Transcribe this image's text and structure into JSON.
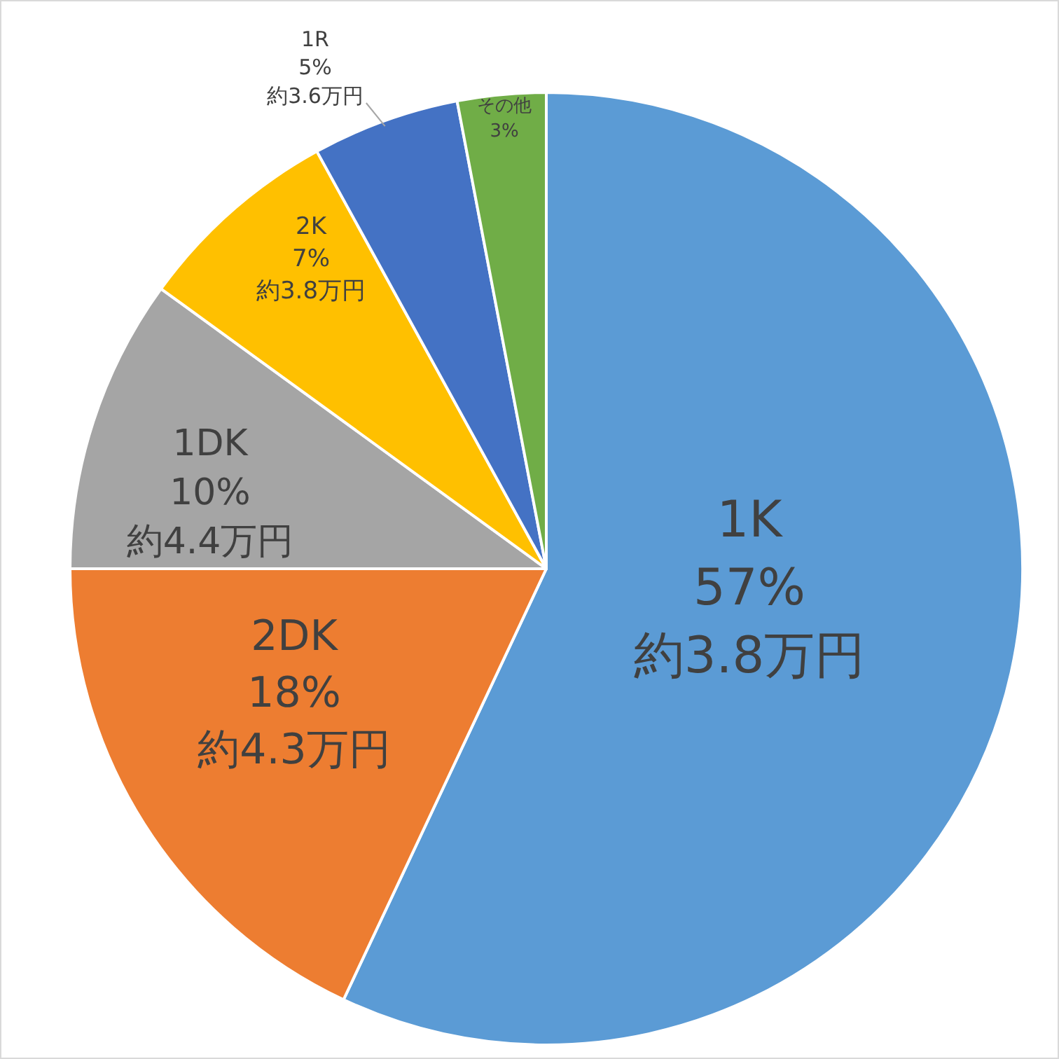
{
  "chart_data": {
    "type": "pie",
    "categories": [
      "1K",
      "2DK",
      "1DK",
      "2K",
      "1R",
      "その他"
    ],
    "values": [
      57,
      18,
      10,
      7,
      5,
      3
    ],
    "colors": [
      "#5b9bd5",
      "#ed7d31",
      "#a5a5a5",
      "#ffc000",
      "#4472c4",
      "#70ad47"
    ],
    "value_labels": [
      "57%",
      "18%",
      "10%",
      "7%",
      "5%",
      "3%"
    ],
    "annotations": [
      "約3.8万円",
      "約4.3万円",
      "約4.4万円",
      "約3.8万円",
      "約3.6万円"
    ]
  }
}
